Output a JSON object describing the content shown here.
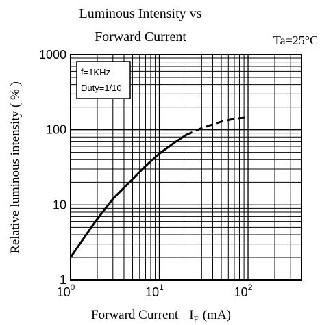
{
  "chart_data": {
    "type": "line",
    "title": "Luminous Intensity vs",
    "subtitle": "Forward Current",
    "condition": "Ta=25°C",
    "xlabel": "Forward Current",
    "xlabel_symbol": "I",
    "xlabel_subscript": "F",
    "xlabel_unit": "(mA)",
    "ylabel": "Relative luminous intensity ( % )",
    "xscale": "log",
    "yscale": "log",
    "xlim": [
      1,
      400
    ],
    "ylim": [
      1,
      1000
    ],
    "grid": true,
    "x_ticks": [
      {
        "base": "10",
        "exp": "0",
        "value": 1
      },
      {
        "base": "10",
        "exp": "1",
        "value": 10
      },
      {
        "base": "10",
        "exp": "2",
        "value": 100
      }
    ],
    "y_ticks": [
      {
        "label": "1",
        "value": 1
      },
      {
        "label": "10",
        "value": 10
      },
      {
        "label": "100",
        "value": 100
      },
      {
        "label": "1000",
        "value": 1000
      }
    ],
    "annotation": {
      "lines": [
        "f=1KHz",
        "Duty=1/10"
      ]
    },
    "series": [
      {
        "style": "solid",
        "x": [
          1,
          1.5,
          2,
          3,
          5,
          7,
          10,
          15,
          20
        ],
        "y": [
          2,
          4,
          6.5,
          12,
          22,
          33,
          48,
          68,
          85
        ]
      },
      {
        "style": "dashed",
        "x": [
          20,
          30,
          40,
          50,
          70,
          100
        ],
        "y": [
          85,
          105,
          118,
          128,
          140,
          146
        ]
      }
    ]
  }
}
